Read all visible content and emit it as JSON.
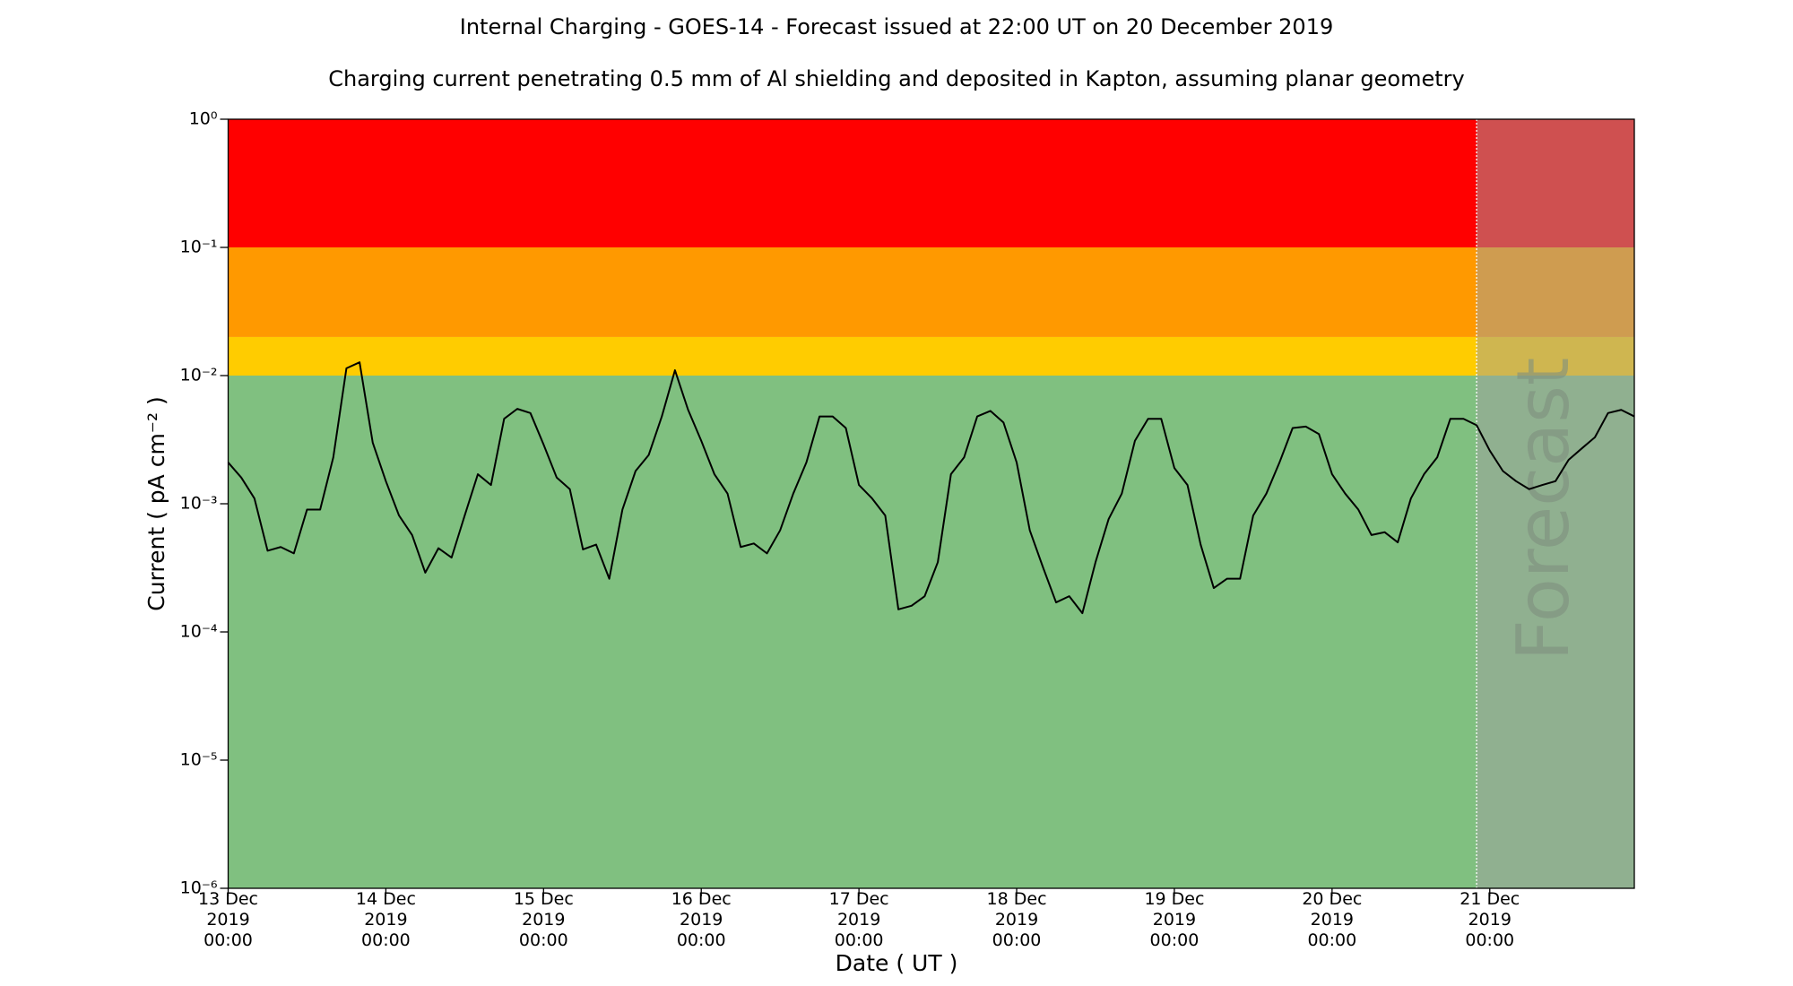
{
  "chart_data": {
    "type": "line",
    "title": "Internal Charging - GOES-14 - Forecast issued at 22:00 UT on 20 December 2019",
    "subtitle": "Charging current penetrating 0.5 mm of Al shielding and deposited in Kapton, assuming planar geometry",
    "x_label": "Date ( UT )",
    "y_label": "Current ( pA cm⁻² )",
    "annotation": "Forecast",
    "log_y": true,
    "xlim": [
      "2019-12-13T00:00",
      "2019-12-21T22:00"
    ],
    "ylim": [
      1e-06,
      1
    ],
    "yticks": [
      {
        "value": 1e-06,
        "label": "10⁻⁶"
      },
      {
        "value": 1e-05,
        "label": "10⁻⁵"
      },
      {
        "value": 0.0001,
        "label": "10⁻⁴"
      },
      {
        "value": 0.001,
        "label": "10⁻³"
      },
      {
        "value": 0.01,
        "label": "10⁻²"
      },
      {
        "value": 0.1,
        "label": "10⁻¹"
      },
      {
        "value": 1,
        "label": "10⁰"
      }
    ],
    "xticks": [
      {
        "value": "2019-12-13T00:00",
        "label": "13 Dec\n2019\n00:00"
      },
      {
        "value": "2019-12-14T00:00",
        "label": "14 Dec\n2019\n00:00"
      },
      {
        "value": "2019-12-15T00:00",
        "label": "15 Dec\n2019\n00:00"
      },
      {
        "value": "2019-12-16T00:00",
        "label": "16 Dec\n2019\n00:00"
      },
      {
        "value": "2019-12-17T00:00",
        "label": "17 Dec\n2019\n00:00"
      },
      {
        "value": "2019-12-18T00:00",
        "label": "18 Dec\n2019\n00:00"
      },
      {
        "value": "2019-12-19T00:00",
        "label": "19 Dec\n2019\n00:00"
      },
      {
        "value": "2019-12-20T00:00",
        "label": "20 Dec\n2019\n00:00"
      },
      {
        "value": "2019-12-21T00:00",
        "label": "21 Dec\n2019\n00:00"
      }
    ],
    "bands": [
      {
        "from": 1e-06,
        "to": 0.01,
        "color": "#80c080"
      },
      {
        "from": 0.01,
        "to": 0.02,
        "color": "#ffcc00"
      },
      {
        "from": 0.02,
        "to": 0.1,
        "color": "#ff9900"
      },
      {
        "from": 0.1,
        "to": 1,
        "color": "#ff0000"
      }
    ],
    "forecast_start": "2019-12-20T22:00",
    "forecast_shade": "#a0a0a0",
    "color": "#000000",
    "x": [
      "2019-12-13T00:00",
      "2019-12-13T02:00",
      "2019-12-13T04:00",
      "2019-12-13T06:00",
      "2019-12-13T08:00",
      "2019-12-13T10:00",
      "2019-12-13T12:00",
      "2019-12-13T14:00",
      "2019-12-13T16:00",
      "2019-12-13T18:00",
      "2019-12-13T20:00",
      "2019-12-13T22:00",
      "2019-12-14T00:00",
      "2019-12-14T02:00",
      "2019-12-14T04:00",
      "2019-12-14T06:00",
      "2019-12-14T08:00",
      "2019-12-14T10:00",
      "2019-12-14T12:00",
      "2019-12-14T14:00",
      "2019-12-14T16:00",
      "2019-12-14T18:00",
      "2019-12-14T20:00",
      "2019-12-14T22:00",
      "2019-12-15T00:00",
      "2019-12-15T02:00",
      "2019-12-15T04:00",
      "2019-12-15T06:00",
      "2019-12-15T08:00",
      "2019-12-15T10:00",
      "2019-12-15T12:00",
      "2019-12-15T14:00",
      "2019-12-15T16:00",
      "2019-12-15T18:00",
      "2019-12-15T20:00",
      "2019-12-15T22:00",
      "2019-12-16T00:00",
      "2019-12-16T02:00",
      "2019-12-16T04:00",
      "2019-12-16T06:00",
      "2019-12-16T08:00",
      "2019-12-16T10:00",
      "2019-12-16T12:00",
      "2019-12-16T14:00",
      "2019-12-16T16:00",
      "2019-12-16T18:00",
      "2019-12-16T20:00",
      "2019-12-16T22:00",
      "2019-12-17T00:00",
      "2019-12-17T02:00",
      "2019-12-17T04:00",
      "2019-12-17T06:00",
      "2019-12-17T08:00",
      "2019-12-17T10:00",
      "2019-12-17T12:00",
      "2019-12-17T14:00",
      "2019-12-17T16:00",
      "2019-12-17T18:00",
      "2019-12-17T20:00",
      "2019-12-17T22:00",
      "2019-12-18T00:00",
      "2019-12-18T02:00",
      "2019-12-18T04:00",
      "2019-12-18T06:00",
      "2019-12-18T08:00",
      "2019-12-18T10:00",
      "2019-12-18T12:00",
      "2019-12-18T14:00",
      "2019-12-18T16:00",
      "2019-12-18T18:00",
      "2019-12-18T20:00",
      "2019-12-18T22:00",
      "2019-12-19T00:00",
      "2019-12-19T02:00",
      "2019-12-19T04:00",
      "2019-12-19T06:00",
      "2019-12-19T08:00",
      "2019-12-19T10:00",
      "2019-12-19T12:00",
      "2019-12-19T14:00",
      "2019-12-19T16:00",
      "2019-12-19T18:00",
      "2019-12-19T20:00",
      "2019-12-19T22:00",
      "2019-12-20T00:00",
      "2019-12-20T02:00",
      "2019-12-20T04:00",
      "2019-12-20T06:00",
      "2019-12-20T08:00",
      "2019-12-20T10:00",
      "2019-12-20T12:00",
      "2019-12-20T14:00",
      "2019-12-20T16:00",
      "2019-12-20T18:00",
      "2019-12-20T20:00",
      "2019-12-20T22:00",
      "2019-12-21T00:00",
      "2019-12-21T02:00",
      "2019-12-21T04:00",
      "2019-12-21T06:00",
      "2019-12-21T08:00",
      "2019-12-21T10:00",
      "2019-12-21T12:00",
      "2019-12-21T14:00",
      "2019-12-21T16:00",
      "2019-12-21T18:00",
      "2019-12-21T20:00",
      "2019-12-21T22:00"
    ],
    "values": [
      0.0021,
      0.0016,
      0.0011,
      0.00043,
      0.00046,
      0.00041,
      0.0009,
      0.0009,
      0.0023,
      0.0114,
      0.0127,
      0.003,
      0.0015,
      0.00081,
      0.00057,
      0.00029,
      0.00045,
      0.00038,
      0.00081,
      0.0017,
      0.0014,
      0.0046,
      0.0055,
      0.0051,
      0.0029,
      0.0016,
      0.0013,
      0.00044,
      0.00048,
      0.00026,
      0.0009,
      0.0018,
      0.0024,
      0.0048,
      0.011,
      0.0054,
      0.0031,
      0.0017,
      0.0012,
      0.00046,
      0.00049,
      0.00041,
      0.00062,
      0.0012,
      0.0021,
      0.0048,
      0.0048,
      0.0039,
      0.0014,
      0.0011,
      0.00081,
      0.00015,
      0.00016,
      0.00019,
      0.00035,
      0.0017,
      0.0023,
      0.0048,
      0.0053,
      0.0043,
      0.0021,
      0.00062,
      0.00032,
      0.00017,
      0.00019,
      0.00014,
      0.00035,
      0.00076,
      0.0012,
      0.0031,
      0.0046,
      0.0046,
      0.0019,
      0.0014,
      0.00048,
      0.00022,
      0.00026,
      0.00026,
      0.00081,
      0.0012,
      0.0021,
      0.0039,
      0.004,
      0.0035,
      0.0017,
      0.0012,
      0.0009,
      0.00057,
      0.0006,
      0.0005,
      0.0011,
      0.0017,
      0.0023,
      0.0046,
      0.0046,
      0.0041,
      0.0026,
      0.0018,
      0.0015,
      0.0013,
      0.0014,
      0.0015,
      0.0022,
      0.0027,
      0.0033,
      0.0051,
      0.0054,
      0.0048
    ]
  }
}
